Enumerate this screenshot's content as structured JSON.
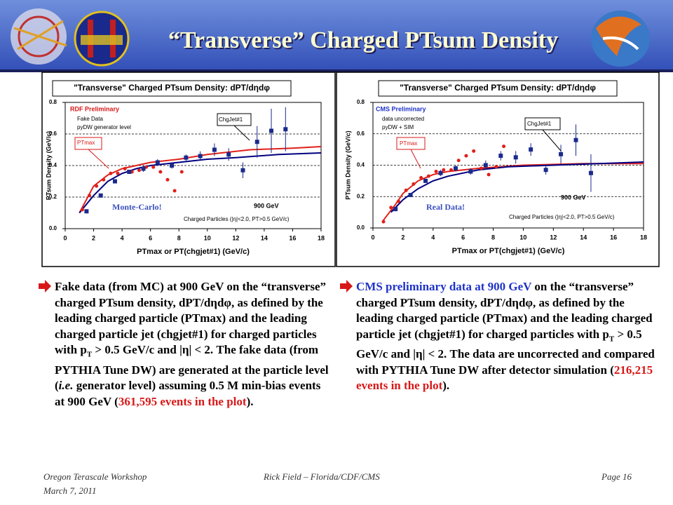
{
  "header": {
    "title": "“Transverse” Charged PTsum Density"
  },
  "chart_data": [
    {
      "type": "scatter",
      "title": "\"Transverse\" Charged PTsum Density: dPT/dηdφ",
      "x_label": "PTmax or PT(chgjet#1)  (GeV/c)",
      "y_label": "PTsum Density (GeV/c)",
      "annotations": [
        "RDF Preliminary",
        "Fake Data",
        "pyDW generator level",
        "ChgJet#1",
        "PTmax",
        "Monte-Carlo!",
        "900 GeV",
        "Charged Particles (|η|<2.0, PT>0.5 GeV/c)"
      ],
      "xlim": [
        0,
        18
      ],
      "xticks": [
        0,
        2,
        4,
        6,
        8,
        10,
        12,
        14,
        16,
        18
      ],
      "ylim": [
        0,
        0.8
      ],
      "yticks": [
        {
          "value": 0,
          "label": "0.0"
        },
        0.2,
        0.4,
        0.6,
        0.8
      ],
      "grid": true,
      "series": [
        {
          "mode": "line",
          "color": "#e0201a",
          "x": [
            1,
            2,
            3,
            4,
            5,
            6,
            8,
            10,
            13,
            16,
            18
          ],
          "values": [
            0.1,
            0.27,
            0.34,
            0.38,
            0.4,
            0.42,
            0.44,
            0.47,
            0.5,
            0.51,
            0.52
          ]
        },
        {
          "mode": "line",
          "color": "#000080",
          "x": [
            1,
            2,
            3,
            4,
            5,
            6,
            8,
            10,
            12,
            15,
            18
          ],
          "values": [
            0.1,
            0.21,
            0.3,
            0.35,
            0.38,
            0.4,
            0.42,
            0.44,
            0.45,
            0.47,
            0.48
          ]
        },
        {
          "mode": "points",
          "marker": "circle",
          "color": "#e0201a",
          "x": [
            1.2,
            1.7,
            2.2,
            2.7,
            3.2,
            3.7,
            4.2,
            4.7,
            5.2,
            5.7,
            6.2,
            6.7,
            7.2,
            7.7,
            8.2
          ],
          "values": [
            0.12,
            0.21,
            0.27,
            0.31,
            0.35,
            0.35,
            0.38,
            0.36,
            0.37,
            0.39,
            0.39,
            0.36,
            0.31,
            0.24,
            0.36
          ]
        },
        {
          "mode": "points",
          "marker": "square",
          "color": "#1a2a8c",
          "x": [
            1.5,
            2.5,
            3.5,
            4.5,
            5.5,
            6.5,
            7.5,
            8.5,
            9.5,
            10.5,
            11.5,
            12.5,
            13.5,
            14.5,
            15.5
          ],
          "values": [
            0.11,
            0.21,
            0.3,
            0.36,
            0.38,
            0.42,
            0.4,
            0.45,
            0.46,
            0.5,
            0.47,
            0.37,
            0.55,
            0.62,
            0.63
          ],
          "errors": [
            0.01,
            0.01,
            0.01,
            0.01,
            0.02,
            0.02,
            0.02,
            0.02,
            0.03,
            0.04,
            0.04,
            0.05,
            0.1,
            0.14,
            0.14
          ]
        }
      ]
    },
    {
      "type": "scatter",
      "title": "\"Transverse\" Charged PTsum Density: dPT/dηdφ",
      "x_label": "PTmax or PT(chgjet#1)  (GeV/c)",
      "y_label": "PTsum Density (GeV/c)",
      "annotations": [
        "CMS Preliminary",
        "data uncorrected",
        "pyDW + SIM",
        "ChgJet#1",
        "PTmax",
        "Real Data!",
        "900 GeV",
        "Charged Particles (|η|<2.0, PT>0.5 GeV/c)"
      ],
      "xlim": [
        0,
        18
      ],
      "xticks": [
        0,
        2,
        4,
        6,
        8,
        10,
        12,
        14,
        16,
        18
      ],
      "ylim": [
        0,
        0.8
      ],
      "yticks": [
        {
          "value": 0,
          "label": "0.0"
        },
        0.2,
        0.4,
        0.6,
        0.8
      ],
      "grid": true,
      "series": [
        {
          "mode": "line",
          "color": "#e0201a",
          "x": [
            0.7,
            1.5,
            2,
            3,
            4,
            5,
            7,
            10,
            14,
            18
          ],
          "values": [
            0.05,
            0.15,
            0.22,
            0.3,
            0.34,
            0.36,
            0.38,
            0.4,
            0.41,
            0.41
          ]
        },
        {
          "mode": "line",
          "color": "#000080",
          "x": [
            1.2,
            2,
            3,
            4,
            5,
            7,
            9,
            12,
            15,
            18
          ],
          "values": [
            0.1,
            0.18,
            0.25,
            0.3,
            0.33,
            0.37,
            0.39,
            0.4,
            0.41,
            0.42
          ]
        },
        {
          "mode": "points",
          "marker": "circle",
          "color": "#e0201a",
          "x": [
            0.7,
            1.2,
            1.7,
            2.2,
            2.7,
            3.2,
            3.7,
            4.2,
            4.7,
            5.2,
            5.7,
            6.2,
            6.7,
            7.2,
            7.7,
            8.2,
            8.7
          ],
          "values": [
            0.04,
            0.13,
            0.17,
            0.24,
            0.28,
            0.32,
            0.33,
            0.36,
            0.37,
            0.37,
            0.43,
            0.46,
            0.49,
            0.38,
            0.34,
            0.39,
            0.52
          ]
        },
        {
          "mode": "points",
          "marker": "square",
          "color": "#1a2a8c",
          "x": [
            1.5,
            2.5,
            3.5,
            4.5,
            5.5,
            6.5,
            7.5,
            8.5,
            9.5,
            10.5,
            11.5,
            12.5,
            13.5,
            14.5
          ],
          "values": [
            0.12,
            0.21,
            0.3,
            0.35,
            0.38,
            0.36,
            0.4,
            0.46,
            0.45,
            0.5,
            0.37,
            0.47,
            0.56,
            0.35
          ],
          "errors": [
            0.01,
            0.01,
            0.01,
            0.02,
            0.02,
            0.02,
            0.03,
            0.03,
            0.04,
            0.04,
            0.03,
            0.06,
            0.1,
            0.12
          ]
        }
      ]
    }
  ],
  "paragraphs": [
    {
      "segments": [
        "Fake data (from MC) at 900 GeV on the “transverse” charged PTsum density, dPT/dηdφ, as defined by the leading charged particle (PTmax) and the leading charged particle jet (chgjet#1) for charged particles with p",
        "T",
        " > 0.5 GeV/c and |η| < 2.  The fake data (from PYTHIA Tune DW) are generated at the particle level (",
        "i.e.",
        " generator level) assuming 0.5 M min-bias events at 900 GeV (",
        "361,595 events in the plot",
        ")."
      ]
    },
    {
      "segments": [
        "CMS preliminary data at  900 GeV",
        " on the “transverse” charged PTsum density, dPT/dηdφ, as defined by the leading charged particle (PTmax) and the leading charged particle jet (chgjet#1) for charged particles with p",
        "T",
        " > 0.5 GeV/c and |η| < 2.  The data are uncorrected and compared with PYTHIA Tune DW after detector simulation (",
        "216,215 events in the plot",
        ")."
      ]
    }
  ],
  "footer": {
    "left1": "Oregon Terascale Workshop",
    "left2": "March 7, 2011",
    "center": "Rick Field – Florida/CDF/CMS",
    "right": "Page 16"
  }
}
